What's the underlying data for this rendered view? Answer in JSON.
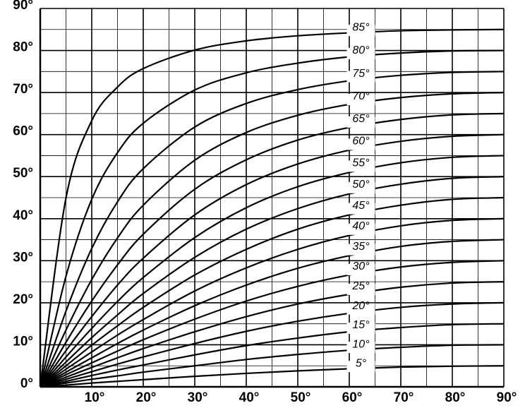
{
  "chart_data": {
    "type": "line",
    "x": [
      0,
      5,
      10,
      15,
      20,
      30,
      40,
      50,
      60,
      70,
      80,
      90
    ],
    "series": [
      {
        "name": "5°",
        "color": "#000000",
        "values": [
          0,
          0.4,
          0.9,
          1.3,
          1.7,
          2.5,
          3.2,
          3.8,
          4.3,
          4.7,
          4.9,
          5
        ]
      },
      {
        "name": "10°",
        "color": "#000000",
        "values": [
          0,
          0.9,
          1.8,
          2.6,
          3.5,
          5.0,
          6.5,
          7.7,
          8.7,
          9.4,
          9.9,
          10
        ]
      },
      {
        "name": "15°",
        "color": "#000000",
        "values": [
          0,
          1.3,
          2.7,
          4.0,
          5.2,
          7.6,
          9.8,
          11.6,
          13.1,
          14.1,
          14.8,
          15
        ]
      },
      {
        "name": "20°",
        "color": "#000000",
        "values": [
          0,
          1.8,
          3.6,
          5.4,
          7.1,
          10.3,
          13.2,
          15.6,
          17.5,
          18.9,
          19.7,
          20
        ]
      },
      {
        "name": "25°",
        "color": "#000000",
        "values": [
          0,
          2.3,
          4.6,
          6.9,
          9.1,
          13.1,
          16.7,
          19.7,
          22.0,
          23.7,
          24.7,
          25
        ]
      },
      {
        "name": "30°",
        "color": "#000000",
        "values": [
          0,
          2.9,
          5.7,
          8.5,
          11.2,
          16.1,
          20.4,
          23.9,
          26.6,
          28.5,
          29.6,
          30
        ]
      },
      {
        "name": "35°",
        "color": "#000000",
        "values": [
          0,
          3.5,
          6.9,
          10.3,
          13.5,
          19.3,
          24.2,
          28.2,
          31.2,
          33.4,
          34.6,
          35
        ]
      },
      {
        "name": "40°",
        "color": "#000000",
        "values": [
          0,
          4.2,
          8.3,
          12.3,
          16.0,
          22.8,
          28.3,
          32.7,
          36.0,
          38.3,
          39.6,
          40
        ]
      },
      {
        "name": "45°",
        "color": "#000000",
        "values": [
          0,
          5.0,
          9.9,
          14.5,
          18.9,
          26.6,
          32.7,
          37.5,
          40.9,
          43.2,
          44.6,
          45
        ]
      },
      {
        "name": "50°",
        "color": "#000000",
        "values": [
          0,
          5.9,
          11.7,
          17.1,
          22.2,
          30.8,
          37.5,
          42.4,
          45.9,
          48.2,
          49.6,
          50
        ]
      },
      {
        "name": "55°",
        "color": "#000000",
        "values": [
          0,
          7.1,
          13.9,
          20.3,
          26.0,
          35.5,
          42.6,
          47.6,
          51.0,
          53.3,
          54.6,
          55
        ]
      },
      {
        "name": "60°",
        "color": "#000000",
        "values": [
          0,
          8.6,
          16.7,
          24.2,
          30.6,
          40.9,
          48.1,
          53.0,
          56.3,
          58.4,
          59.6,
          60
        ]
      },
      {
        "name": "65°",
        "color": "#000000",
        "values": [
          0,
          10.6,
          20.4,
          29.0,
          36.3,
          47.0,
          54.0,
          58.7,
          61.7,
          63.6,
          64.7,
          65
        ]
      },
      {
        "name": "70°",
        "color": "#000000",
        "values": [
          0,
          13.5,
          25.5,
          35.4,
          43.2,
          53.9,
          60.5,
          64.6,
          67.2,
          68.8,
          69.7,
          70
        ]
      },
      {
        "name": "75°",
        "color": "#000000",
        "values": [
          0,
          18.0,
          32.9,
          44.0,
          51.9,
          61.8,
          67.4,
          70.7,
          72.8,
          74.1,
          74.8,
          75
        ]
      },
      {
        "name": "80°",
        "color": "#000000",
        "values": [
          0,
          26.3,
          44.6,
          55.7,
          62.7,
          70.6,
          74.7,
          77.0,
          78.5,
          79.4,
          79.9,
          80
        ]
      },
      {
        "name": "85°",
        "color": "#000000",
        "values": [
          0,
          44.9,
          63.3,
          71.3,
          75.7,
          80.1,
          82.3,
          83.5,
          84.2,
          84.7,
          84.9,
          85
        ]
      }
    ],
    "xlim": [
      0,
      90
    ],
    "ylim": [
      0,
      90
    ],
    "xticks": [
      {
        "value": 10,
        "label": "10°"
      },
      {
        "value": 20,
        "label": "20°"
      },
      {
        "value": 30,
        "label": "30°"
      },
      {
        "value": 40,
        "label": "40°"
      },
      {
        "value": 50,
        "label": "50°"
      },
      {
        "value": 60,
        "label": "60°"
      },
      {
        "value": 70,
        "label": "70°"
      },
      {
        "value": 80,
        "label": "80°"
      },
      {
        "value": 90,
        "label": "90°"
      }
    ],
    "yticks": [
      {
        "value": 0,
        "label": "0°"
      },
      {
        "value": 10,
        "label": "10°"
      },
      {
        "value": 20,
        "label": "20°"
      },
      {
        "value": 30,
        "label": "30°"
      },
      {
        "value": 40,
        "label": "40°"
      },
      {
        "value": 50,
        "label": "50°"
      },
      {
        "value": 60,
        "label": "60°"
      },
      {
        "value": 70,
        "label": "70°"
      },
      {
        "value": 80,
        "label": "80°"
      },
      {
        "value": 90,
        "label": "90°"
      }
    ],
    "grid": true
  }
}
